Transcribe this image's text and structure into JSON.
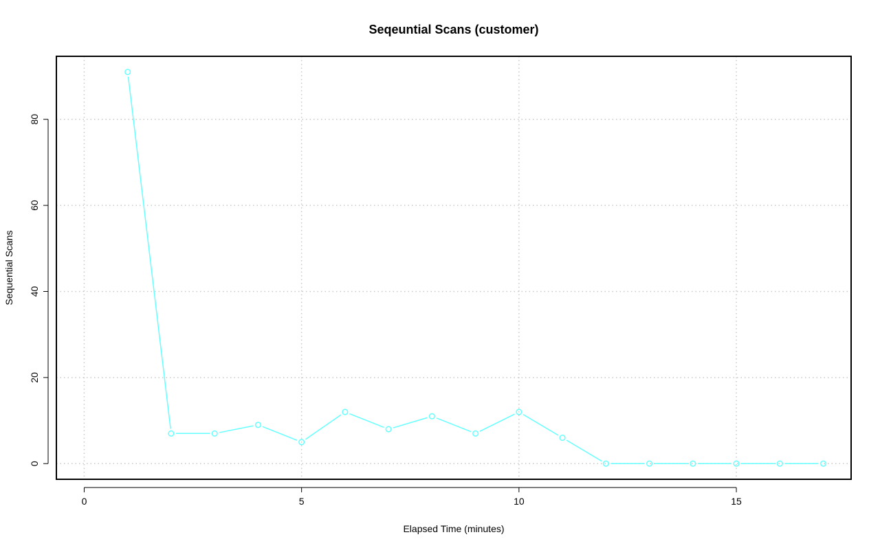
{
  "chart_data": {
    "type": "line",
    "title": "Seqeuntial Scans (customer)",
    "xlabel": "Elapsed Time (minutes)",
    "ylabel": "Sequential Scans",
    "xlim": [
      -0.64,
      17.64
    ],
    "ylim": [
      -3.64,
      94.64
    ],
    "x_ticks": [
      0,
      5,
      10,
      15
    ],
    "y_ticks": [
      0,
      20,
      40,
      60,
      80
    ],
    "grid": true,
    "series": [
      {
        "color": "#66ffff",
        "marker": "open-circle",
        "x": [
          1,
          2,
          3,
          4,
          5,
          6,
          7,
          8,
          9,
          10,
          11,
          12,
          13,
          14,
          15,
          16,
          17
        ],
        "y": [
          91,
          7,
          7,
          9,
          5,
          12,
          8,
          11,
          7,
          12,
          6,
          0,
          0,
          0,
          0,
          0,
          0
        ]
      }
    ]
  }
}
